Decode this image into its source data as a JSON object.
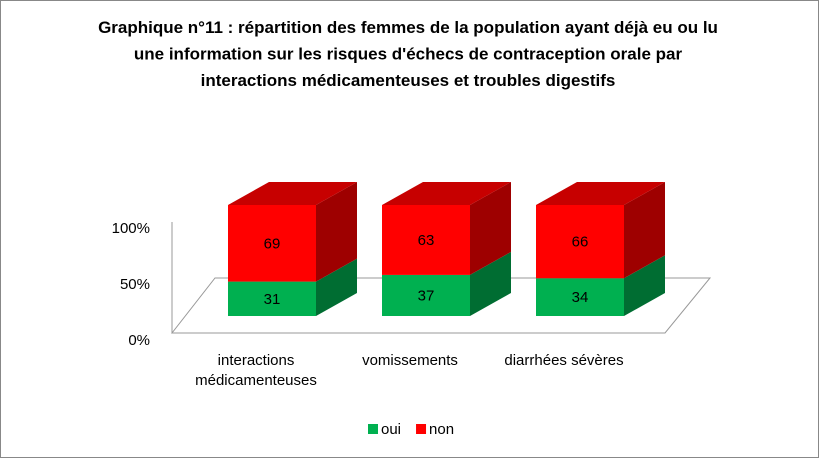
{
  "chart_data": {
    "type": "bar3d_stacked",
    "title": "Graphique n°11 : répartition des femmes de la population ayant déjà eu ou lu une information sur les risques d'échecs de contraception orale par interactions médicamenteuses et troubles digestifs",
    "categories": [
      "interactions médicamenteuses",
      "vomissements",
      "diarrhées sévères"
    ],
    "series": [
      {
        "name": "oui",
        "color": "#00b050",
        "values": [
          31,
          37,
          34
        ]
      },
      {
        "name": "non",
        "color": "#ff0000",
        "values": [
          69,
          63,
          66
        ]
      }
    ],
    "ylim": [
      0,
      100
    ],
    "yticks": [
      {
        "value": 0,
        "label": "0%"
      },
      {
        "value": 50,
        "label": "50%"
      },
      {
        "value": 100,
        "label": "100%"
      }
    ],
    "grid": false,
    "legend": "bottom"
  }
}
